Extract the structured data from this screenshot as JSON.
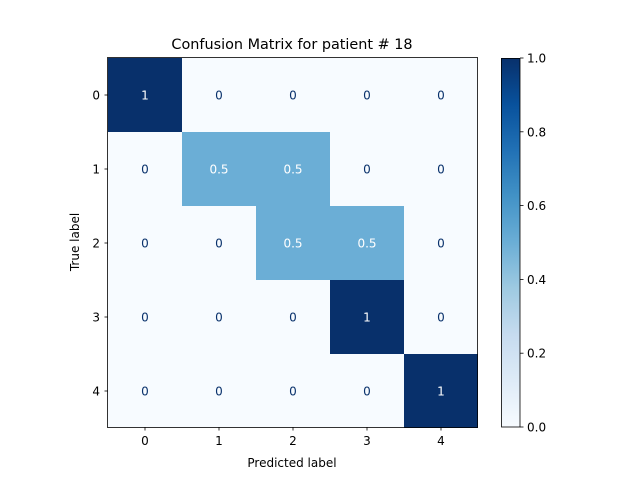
{
  "chart_data": {
    "type": "heatmap",
    "title": "Confusion Matrix for patient # 18",
    "xlabel": "Predicted label",
    "ylabel": "True label",
    "x_categories": [
      "0",
      "1",
      "2",
      "3",
      "4"
    ],
    "y_categories": [
      "0",
      "1",
      "2",
      "3",
      "4"
    ],
    "values": [
      [
        1,
        0,
        0,
        0,
        0
      ],
      [
        0,
        0.5,
        0.5,
        0,
        0
      ],
      [
        0,
        0,
        0.5,
        0.5,
        0
      ],
      [
        0,
        0,
        0,
        1,
        0
      ],
      [
        0,
        0,
        0,
        0,
        1
      ]
    ],
    "cell_labels": [
      [
        "1",
        "0",
        "0",
        "0",
        "0"
      ],
      [
        "0",
        "0.5",
        "0.5",
        "0",
        "0"
      ],
      [
        "0",
        "0",
        "0.5",
        "0.5",
        "0"
      ],
      [
        "0",
        "0",
        "0",
        "1",
        "0"
      ],
      [
        "0",
        "0",
        "0",
        "0",
        "1"
      ]
    ],
    "colormap": "Blues",
    "colorbar": {
      "range": [
        0.0,
        1.0
      ],
      "ticks": [
        "0.0",
        "0.2",
        "0.4",
        "0.6",
        "0.8",
        "1.0"
      ]
    }
  }
}
